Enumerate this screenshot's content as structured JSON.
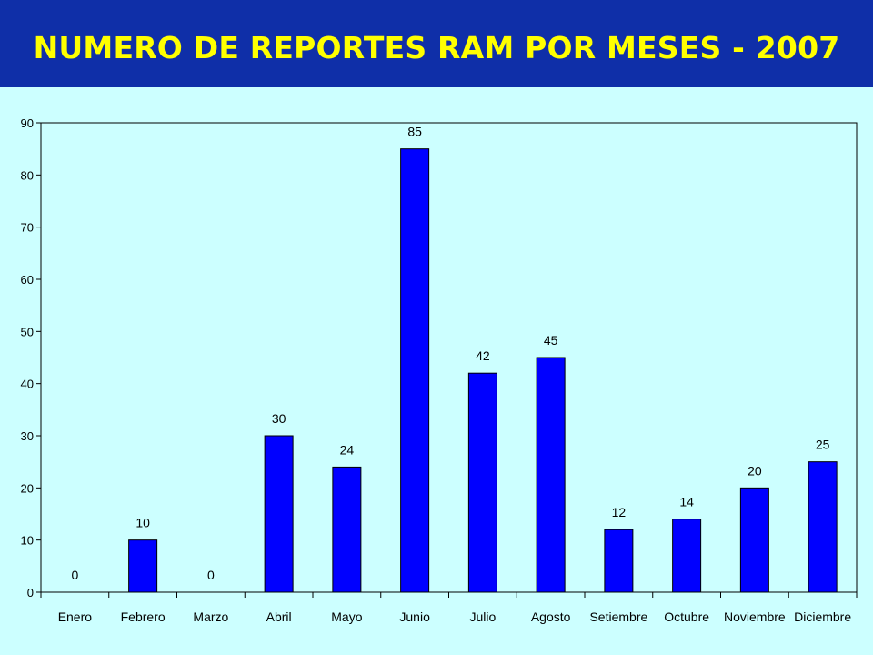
{
  "header": {
    "title": "NUMERO DE REPORTES RAM POR MESES - 2007"
  },
  "colors": {
    "header_bg": "#0f2fa8",
    "title_text": "#ffff00",
    "page_bg": "#ccffff",
    "bar_fill": "#0000ff",
    "bar_stroke": "#000000"
  },
  "chart_data": {
    "type": "bar",
    "title": "NUMERO DE REPORTES RAM POR MESES - 2007",
    "xlabel": "",
    "ylabel": "",
    "ylim": [
      0,
      90
    ],
    "yticks": [
      0,
      10,
      20,
      30,
      40,
      50,
      60,
      70,
      80,
      90
    ],
    "grid": false,
    "legend": "none",
    "categories": [
      "Enero",
      "Febrero",
      "Marzo",
      "Abril",
      "Mayo",
      "Junio",
      "Julio",
      "Agosto",
      "Setiembre",
      "Octubre",
      "Noviembre",
      "Diciembre"
    ],
    "values": [
      0,
      10,
      0,
      30,
      24,
      85,
      42,
      45,
      12,
      14,
      20,
      25
    ],
    "data_labels": [
      "0",
      "10",
      "0",
      "30",
      "24",
      "85",
      "42",
      "45",
      "12",
      "14",
      "20",
      "25"
    ]
  }
}
